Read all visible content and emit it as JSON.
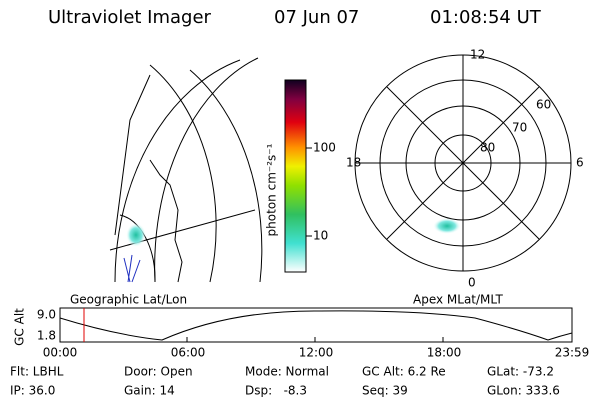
{
  "header": {
    "instrument": "Ultraviolet Imager",
    "date": "07 Jun 07",
    "time": "01:08:54 UT"
  },
  "colorbar": {
    "label": "photon cm⁻²s⁻¹",
    "ticks": [
      "100",
      "10"
    ]
  },
  "polar_plot": {
    "mlt_labels": [
      "12",
      "18",
      "6",
      "0"
    ],
    "mlat_labels": [
      "60",
      "70",
      "80"
    ],
    "caption": "Apex MLat/MLT"
  },
  "map_plot": {
    "caption": "Geographic Lat/Lon"
  },
  "orbit_plot": {
    "axis_label": "GC Alt",
    "y_labels": [
      "9.0",
      "1.8"
    ],
    "time_labels": [
      "00:00",
      "06:00",
      "12:00",
      "18:00",
      "23:59"
    ]
  },
  "footer": {
    "rows": [
      [
        "Flt: LBHL",
        "Door: Open",
        "Mode: Normal",
        "GC Alt: 6.2 Re",
        "GLat: -73.2"
      ],
      [
        "IP: 36.0",
        "Gain: 14",
        "Dsp:   -8.3",
        "Seq: 39",
        "GLon: 333.6"
      ]
    ]
  }
}
